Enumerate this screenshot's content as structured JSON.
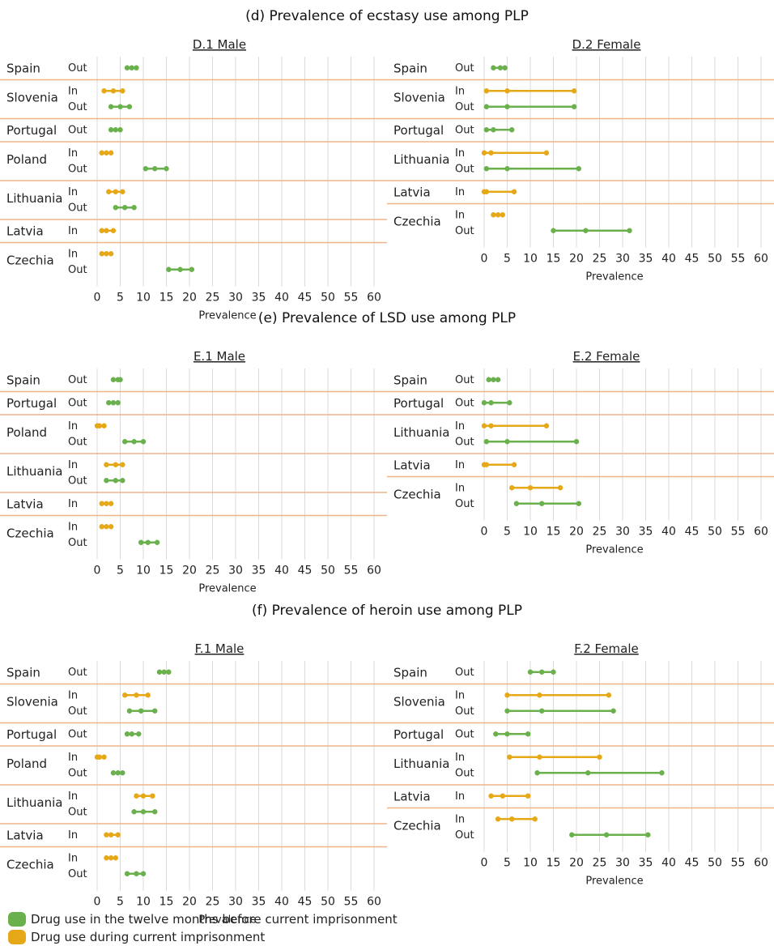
{
  "colors": {
    "out": "#6ab04c",
    "in": "#e6a817",
    "separator": "#f0b48c",
    "grid": "#d9d9d9",
    "text": "#222222"
  },
  "sections": [
    {
      "title": "(d) Prevalence of ecstasy use among PLP"
    },
    {
      "title": "(e) Prevalence of LSD use among PLP"
    },
    {
      "title": "(f) Prevalence of heroin use among PLP"
    }
  ],
  "legend": [
    {
      "key": "out",
      "label": "Drug use in the twelve months before current imprisonment"
    },
    {
      "key": "in",
      "label": "Drug use during current imprisonment"
    }
  ],
  "chart_data": [
    {
      "type": "dot-range",
      "title": "D.1 Male",
      "xlabel": "Prevalence",
      "xticks": [
        0,
        5,
        10,
        15,
        20,
        25,
        30,
        35,
        40,
        45,
        50,
        55,
        60
      ],
      "xlim": [
        0,
        60
      ],
      "countries": [
        {
          "name": "Spain",
          "rows": [
            {
              "label": "Out",
              "values": [
                6.5,
                7.5,
                8.5
              ]
            }
          ]
        },
        {
          "name": "Slovenia",
          "rows": [
            {
              "label": "In",
              "values": [
                1.5,
                3.5,
                5.5
              ]
            },
            {
              "label": "Out",
              "values": [
                3,
                5,
                7
              ]
            }
          ]
        },
        {
          "name": "Portugal",
          "rows": [
            {
              "label": "Out",
              "values": [
                3,
                4,
                5
              ]
            }
          ]
        },
        {
          "name": "Poland",
          "rows": [
            {
              "label": "In",
              "values": [
                1,
                2,
                3
              ]
            },
            {
              "label": "Out",
              "values": [
                10.5,
                12.5,
                15
              ]
            }
          ]
        },
        {
          "name": "Lithuania",
          "rows": [
            {
              "label": "In",
              "values": [
                2.5,
                4,
                5.5
              ]
            },
            {
              "label": "Out",
              "values": [
                4,
                6,
                8
              ]
            }
          ]
        },
        {
          "name": "Latvia",
          "rows": [
            {
              "label": "In",
              "values": [
                1,
                2,
                3.5
              ]
            }
          ]
        },
        {
          "name": "Czechia",
          "rows": [
            {
              "label": "In",
              "values": [
                1,
                2,
                3
              ]
            },
            {
              "label": "Out",
              "values": [
                15.5,
                18,
                20.5
              ]
            }
          ]
        }
      ]
    },
    {
      "type": "dot-range",
      "title": "D.2 Female",
      "xlabel": "Prevalence",
      "xticks": [
        0,
        5,
        10,
        15,
        20,
        25,
        30,
        35,
        40,
        45,
        50,
        55,
        60
      ],
      "xlim": [
        0,
        60
      ],
      "countries": [
        {
          "name": "Spain",
          "rows": [
            {
              "label": "Out",
              "values": [
                2,
                3.5,
                4.5
              ]
            }
          ]
        },
        {
          "name": "Slovenia",
          "rows": [
            {
              "label": "In",
              "values": [
                0.5,
                5,
                19.5
              ]
            },
            {
              "label": "Out",
              "values": [
                0.5,
                5,
                19.5
              ]
            }
          ]
        },
        {
          "name": "Portugal",
          "rows": [
            {
              "label": "Out",
              "values": [
                0.5,
                2,
                6
              ]
            }
          ]
        },
        {
          "name": "Lithuania",
          "rows": [
            {
              "label": "In",
              "values": [
                0,
                1.5,
                13.5
              ]
            },
            {
              "label": "Out",
              "values": [
                0.5,
                5,
                20.5
              ]
            }
          ]
        },
        {
          "name": "Latvia",
          "rows": [
            {
              "label": "In",
              "values": [
                0,
                0.5,
                6.5
              ]
            }
          ]
        },
        {
          "name": "Czechia",
          "rows": [
            {
              "label": "In",
              "values": [
                2,
                3,
                4
              ]
            },
            {
              "label": "Out",
              "values": [
                15,
                22,
                31.5
              ]
            }
          ]
        }
      ]
    },
    {
      "type": "dot-range",
      "title": "E.1 Male",
      "xlabel": "Prevalence",
      "xticks": [
        0,
        5,
        10,
        15,
        20,
        25,
        30,
        35,
        40,
        45,
        50,
        55,
        60
      ],
      "xlim": [
        0,
        60
      ],
      "countries": [
        {
          "name": "Spain",
          "rows": [
            {
              "label": "Out",
              "values": [
                3.5,
                4.5,
                5
              ]
            }
          ]
        },
        {
          "name": "Portugal",
          "rows": [
            {
              "label": "Out",
              "values": [
                2.5,
                3.5,
                4.5
              ]
            }
          ]
        },
        {
          "name": "Poland",
          "rows": [
            {
              "label": "In",
              "values": [
                0,
                0.5,
                1.5
              ]
            },
            {
              "label": "Out",
              "values": [
                6,
                8,
                10
              ]
            }
          ]
        },
        {
          "name": "Lithuania",
          "rows": [
            {
              "label": "In",
              "values": [
                2,
                4,
                5.5
              ]
            },
            {
              "label": "Out",
              "values": [
                2,
                4,
                5.5
              ]
            }
          ]
        },
        {
          "name": "Latvia",
          "rows": [
            {
              "label": "In",
              "values": [
                1,
                2,
                3
              ]
            }
          ]
        },
        {
          "name": "Czechia",
          "rows": [
            {
              "label": "In",
              "values": [
                1,
                2,
                3
              ]
            },
            {
              "label": "Out",
              "values": [
                9.5,
                11,
                13
              ]
            }
          ]
        }
      ]
    },
    {
      "type": "dot-range",
      "title": "E.2 Female",
      "xlabel": "Prevalence",
      "xticks": [
        0,
        5,
        10,
        15,
        20,
        25,
        30,
        35,
        40,
        45,
        50,
        55,
        60
      ],
      "xlim": [
        0,
        60
      ],
      "countries": [
        {
          "name": "Spain",
          "rows": [
            {
              "label": "Out",
              "values": [
                1,
                2,
                3
              ]
            }
          ]
        },
        {
          "name": "Portugal",
          "rows": [
            {
              "label": "Out",
              "values": [
                0,
                1.5,
                5.5
              ]
            }
          ]
        },
        {
          "name": "Lithuania",
          "rows": [
            {
              "label": "In",
              "values": [
                0,
                1.5,
                13.5
              ]
            },
            {
              "label": "Out",
              "values": [
                0.5,
                5,
                20
              ]
            }
          ]
        },
        {
          "name": "Latvia",
          "rows": [
            {
              "label": "In",
              "values": [
                0,
                0.5,
                6.5
              ]
            }
          ]
        },
        {
          "name": "Czechia",
          "rows": [
            {
              "label": "In",
              "values": [
                6,
                10,
                16.5
              ]
            },
            {
              "label": "Out",
              "values": [
                7,
                12.5,
                20.5
              ]
            }
          ]
        }
      ]
    },
    {
      "type": "dot-range",
      "title": "F.1 Male",
      "xlabel": "Prevalence",
      "xticks": [
        0,
        5,
        10,
        15,
        20,
        25,
        30,
        35,
        40,
        45,
        50,
        55,
        60
      ],
      "xlim": [
        0,
        60
      ],
      "countries": [
        {
          "name": "Spain",
          "rows": [
            {
              "label": "Out",
              "values": [
                13.5,
                14.5,
                15.5
              ]
            }
          ]
        },
        {
          "name": "Slovenia",
          "rows": [
            {
              "label": "In",
              "values": [
                6,
                8.5,
                11
              ]
            },
            {
              "label": "Out",
              "values": [
                7,
                9.5,
                12.5
              ]
            }
          ]
        },
        {
          "name": "Portugal",
          "rows": [
            {
              "label": "Out",
              "values": [
                6.5,
                7.5,
                9
              ]
            }
          ]
        },
        {
          "name": "Poland",
          "rows": [
            {
              "label": "In",
              "values": [
                0,
                0.5,
                1.5
              ]
            },
            {
              "label": "Out",
              "values": [
                3.5,
                4.5,
                5.5
              ]
            }
          ]
        },
        {
          "name": "Lithuania",
          "rows": [
            {
              "label": "In",
              "values": [
                8.5,
                10,
                12
              ]
            },
            {
              "label": "Out",
              "values": [
                8,
                10,
                12.5
              ]
            }
          ]
        },
        {
          "name": "Latvia",
          "rows": [
            {
              "label": "In",
              "values": [
                2,
                3,
                4.5
              ]
            }
          ]
        },
        {
          "name": "Czechia",
          "rows": [
            {
              "label": "In",
              "values": [
                2,
                3,
                4
              ]
            },
            {
              "label": "Out",
              "values": [
                6.5,
                8.5,
                10
              ]
            }
          ]
        }
      ]
    },
    {
      "type": "dot-range",
      "title": "F.2 Female",
      "xlabel": "Prevalence",
      "xticks": [
        0,
        5,
        10,
        15,
        20,
        25,
        30,
        35,
        40,
        45,
        50,
        55,
        60
      ],
      "xlim": [
        0,
        60
      ],
      "countries": [
        {
          "name": "Spain",
          "rows": [
            {
              "label": "Out",
              "values": [
                10,
                12.5,
                15
              ]
            }
          ]
        },
        {
          "name": "Slovenia",
          "rows": [
            {
              "label": "In",
              "values": [
                5,
                12,
                27
              ]
            },
            {
              "label": "Out",
              "values": [
                5,
                12.5,
                28
              ]
            }
          ]
        },
        {
          "name": "Portugal",
          "rows": [
            {
              "label": "Out",
              "values": [
                2.5,
                5,
                9.5
              ]
            }
          ]
        },
        {
          "name": "Lithuania",
          "rows": [
            {
              "label": "In",
              "values": [
                5.5,
                12,
                25
              ]
            },
            {
              "label": "Out",
              "values": [
                11.5,
                22.5,
                38.5
              ]
            }
          ]
        },
        {
          "name": "Latvia",
          "rows": [
            {
              "label": "In",
              "values": [
                1.5,
                4,
                9.5
              ]
            }
          ]
        },
        {
          "name": "Czechia",
          "rows": [
            {
              "label": "In",
              "values": [
                3,
                6,
                11
              ]
            },
            {
              "label": "Out",
              "values": [
                19,
                26.5,
                35.5
              ]
            }
          ]
        }
      ]
    }
  ]
}
